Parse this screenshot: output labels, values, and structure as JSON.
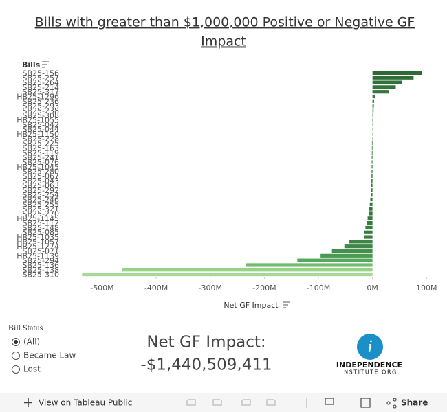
{
  "chart_data": {
    "type": "barh",
    "title": "Bills with greater than $1,000,000 Positive or Negative GF Impact",
    "y_label": "Bills",
    "x_label": "Net GF Impact",
    "categories": [
      "SB25-156",
      "SB25-257",
      "SB25-264",
      "SB25-214",
      "SB25-317",
      "HB25-1296",
      "SB25-236",
      "SB25-293",
      "SB25-238",
      "SB25-308",
      "HB25-1055",
      "SB25-042",
      "SB25-044",
      "HB25-1150",
      "SB25-228",
      "SB25-225",
      "SB25-163",
      "SB25-119",
      "SB25-241",
      "SB25-076",
      "HB25-1045",
      "SB25-280",
      "SB25-067",
      "SB25-043",
      "SB25-063",
      "SB25-292",
      "SB25-254",
      "SB25-246",
      "SB25-255",
      "SB25-321",
      "SB25-270",
      "HB25-1145",
      "SB25-112",
      "SB25-148",
      "SB25-085",
      "HB25-1035",
      "HB25-1057",
      "HB25-1274",
      "SB25-071",
      "HB25-1139",
      "SB25-294",
      "SB25-136",
      "SB25-138",
      "SB25-310"
    ],
    "values": [
      91,
      76,
      54,
      43,
      30,
      5,
      3,
      2.5,
      2,
      1.8,
      1.6,
      1.4,
      1.3,
      1.2,
      1.1,
      -1,
      -1.1,
      -1.2,
      -1.3,
      -1.4,
      -1.5,
      -1.6,
      -1.8,
      -2,
      -2.2,
      -2.5,
      -3,
      -4,
      -5,
      -6,
      -7,
      -9,
      -11,
      -13,
      -15,
      -16,
      -44,
      -52,
      -75,
      -96,
      -139,
      -234,
      -463,
      -537
    ],
    "colors": [
      "#2d6a35",
      "#2f6e37",
      "#31723a",
      "#32743b",
      "#34763c",
      "#35783d",
      "#35783d",
      "#35783d",
      "#35783d",
      "#35783d",
      "#35783d",
      "#35783d",
      "#35783d",
      "#35783d",
      "#35783d",
      "#35783d",
      "#35783d",
      "#35783d",
      "#35783d",
      "#35783d",
      "#35783d",
      "#35783d",
      "#35783d",
      "#35783d",
      "#35783d",
      "#35783d",
      "#35783d",
      "#35783d",
      "#35783d",
      "#35783d",
      "#35783d",
      "#37793f",
      "#387b40",
      "#397c41",
      "#3a7d42",
      "#3b7e43",
      "#3f8446",
      "#41864a",
      "#46904e",
      "#4c9954",
      "#58a75f",
      "#72bd6d",
      "#98d286",
      "#a6d996"
    ],
    "xlim": [
      -540,
      120
    ],
    "xticks": [
      {
        "value": -500,
        "label": "-500M"
      },
      {
        "value": -400,
        "label": "-400M"
      },
      {
        "value": -300,
        "label": "-300M"
      },
      {
        "value": -200,
        "label": "-200M"
      },
      {
        "value": -100,
        "label": "-100M"
      },
      {
        "value": 0,
        "label": "0M"
      },
      {
        "value": 100,
        "label": "100M"
      }
    ]
  },
  "filter": {
    "title": "Bill Status",
    "options": [
      "(All)",
      "Became Law",
      "Lost"
    ]
  },
  "summary": {
    "label": "Net GF Impact:",
    "value": "-$1,440,509,411"
  },
  "logo": {
    "line1": "INDEPENDENCE",
    "line2": "INSTITUTE.ORG"
  },
  "toolbar": {
    "view": "View on Tableau Public",
    "share": "Share"
  }
}
